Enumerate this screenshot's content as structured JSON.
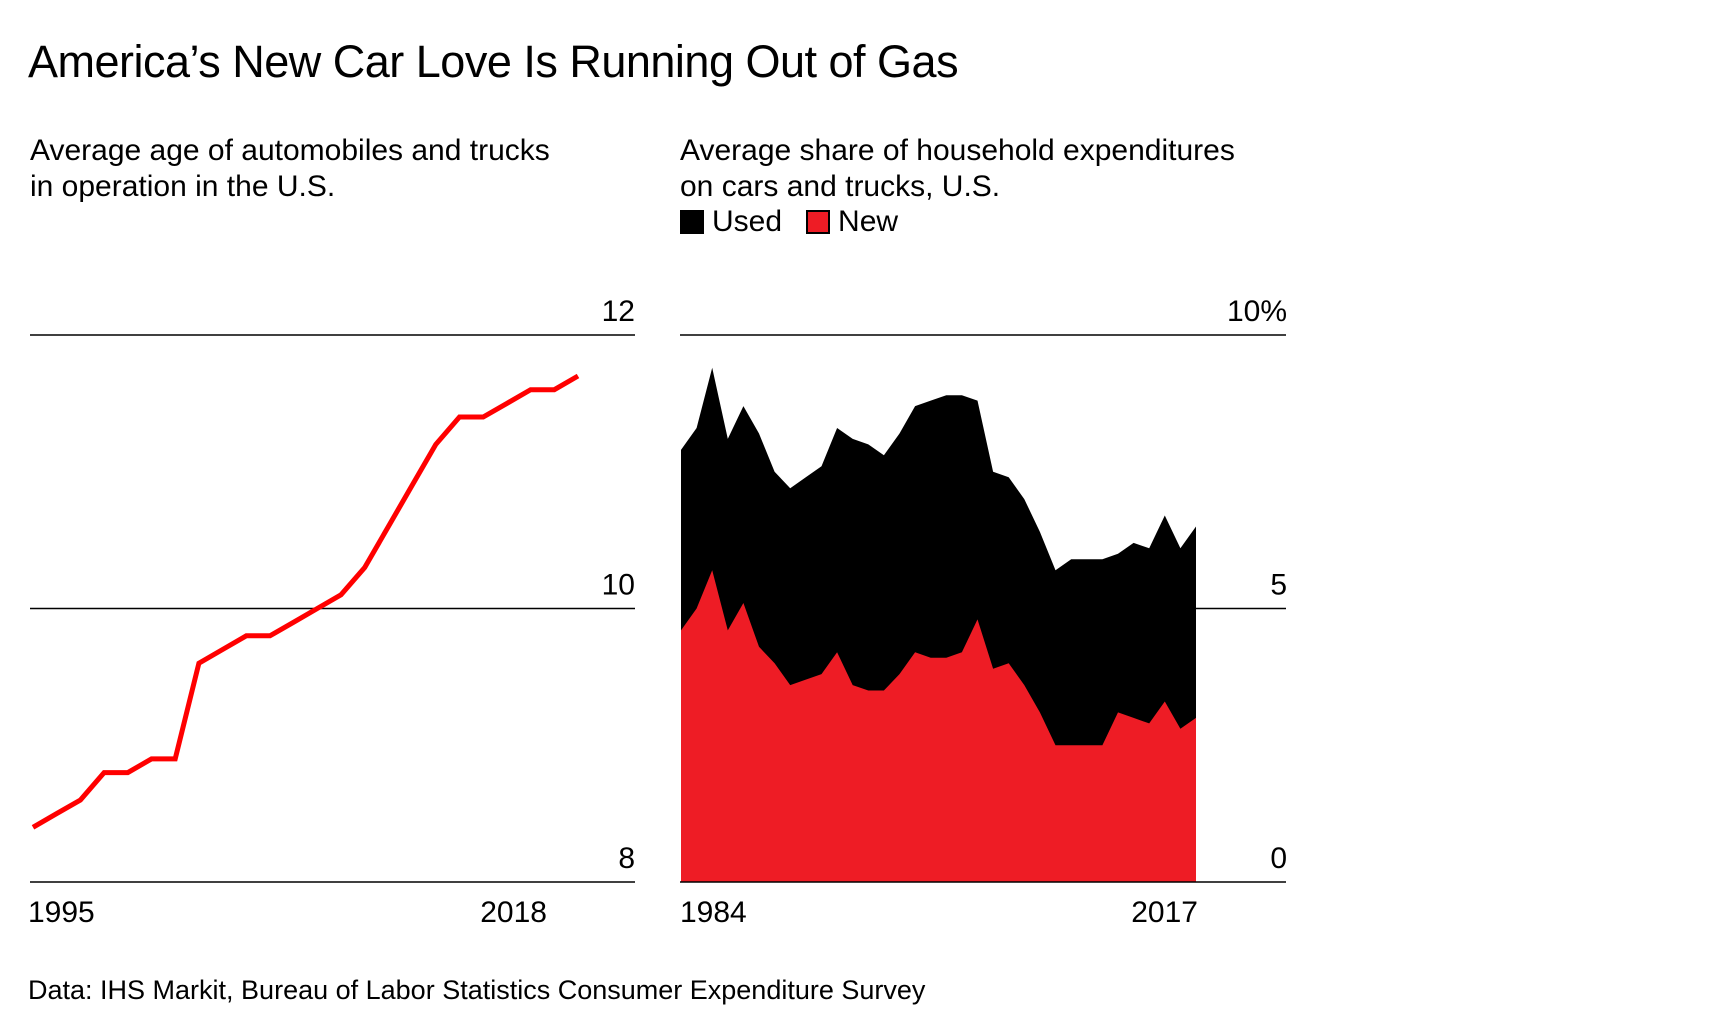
{
  "title": "America’s New Car Love Is Running Out of Gas",
  "source": "Data: IHS Markit, Bureau of Labor Statistics Consumer Expenditure Survey",
  "colors": {
    "red": "#ff0000",
    "area_red": "#ee1c25",
    "black": "#000000",
    "grid": "#000000"
  },
  "chart_data": [
    {
      "type": "line",
      "title": "Average age of automobiles and trucks in operation in the U.S.",
      "x": [
        1995,
        1996,
        1997,
        1998,
        1999,
        2000,
        2001,
        2002,
        2003,
        2004,
        2005,
        2006,
        2007,
        2008,
        2009,
        2010,
        2011,
        2012,
        2013,
        2014,
        2015,
        2016,
        2017,
        2018
      ],
      "series": [
        {
          "values": [
            8.4,
            8.5,
            8.6,
            8.8,
            8.8,
            8.9,
            8.9,
            9.6,
            9.7,
            9.8,
            9.8,
            9.9,
            10.0,
            10.1,
            10.3,
            10.6,
            10.9,
            11.2,
            11.4,
            11.4,
            11.5,
            11.6,
            11.6,
            11.7
          ]
        }
      ],
      "ylim": [
        8,
        12
      ],
      "yticks": [
        "12",
        "10",
        "8"
      ],
      "xticks": [
        "1995",
        "2018"
      ],
      "grid": true
    },
    {
      "type": "area",
      "title": "Average share of household expenditures on cars and trucks, U.S.",
      "legend": [
        "Used",
        "New"
      ],
      "x": [
        1984,
        1985,
        1986,
        1987,
        1988,
        1989,
        1990,
        1991,
        1992,
        1993,
        1994,
        1995,
        1996,
        1997,
        1998,
        1999,
        2000,
        2001,
        2002,
        2003,
        2004,
        2005,
        2006,
        2007,
        2008,
        2009,
        2010,
        2011,
        2012,
        2013,
        2014,
        2015,
        2016,
        2017
      ],
      "series": [
        {
          "name": "New",
          "values": [
            4.6,
            5.0,
            5.7,
            4.6,
            5.1,
            4.3,
            4.0,
            3.6,
            3.7,
            3.8,
            4.2,
            3.6,
            3.5,
            3.5,
            3.8,
            4.2,
            4.1,
            4.1,
            4.2,
            4.8,
            3.9,
            4.0,
            3.6,
            3.1,
            2.5,
            2.5,
            2.5,
            2.5,
            3.1,
            3.0,
            2.9,
            3.3,
            2.8,
            3.0
          ]
        },
        {
          "name": "Used",
          "values": [
            3.3,
            3.3,
            3.7,
            3.5,
            3.6,
            3.9,
            3.5,
            3.6,
            3.7,
            3.8,
            4.1,
            4.5,
            4.5,
            4.3,
            4.4,
            4.5,
            4.7,
            4.8,
            4.7,
            4.0,
            3.6,
            3.4,
            3.4,
            3.3,
            3.2,
            3.4,
            3.4,
            3.4,
            2.9,
            3.2,
            3.2,
            3.4,
            3.3,
            3.5
          ]
        }
      ],
      "ylim": [
        0,
        10
      ],
      "yticks": [
        "10%",
        "5",
        "0"
      ],
      "xticks": [
        "1984",
        "2017"
      ],
      "grid": true
    }
  ]
}
